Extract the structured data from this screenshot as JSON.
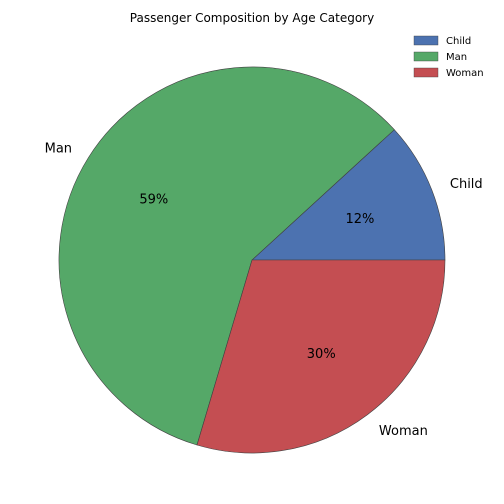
{
  "chart_data": {
    "type": "pie",
    "title": "Passenger Composition by Age Category",
    "categories": [
      "Child",
      "Man",
      "Woman"
    ],
    "values": [
      11.8,
      58.6,
      29.6
    ],
    "value_labels": [
      "12%",
      "59%",
      "30%"
    ],
    "colors": [
      "#4c72b0",
      "#55a868",
      "#c44e52"
    ],
    "start_angle_deg": 0,
    "direction": "counterclockwise",
    "legend": {
      "position": "top-right",
      "entries": [
        "Child",
        "Man",
        "Woman"
      ]
    }
  }
}
